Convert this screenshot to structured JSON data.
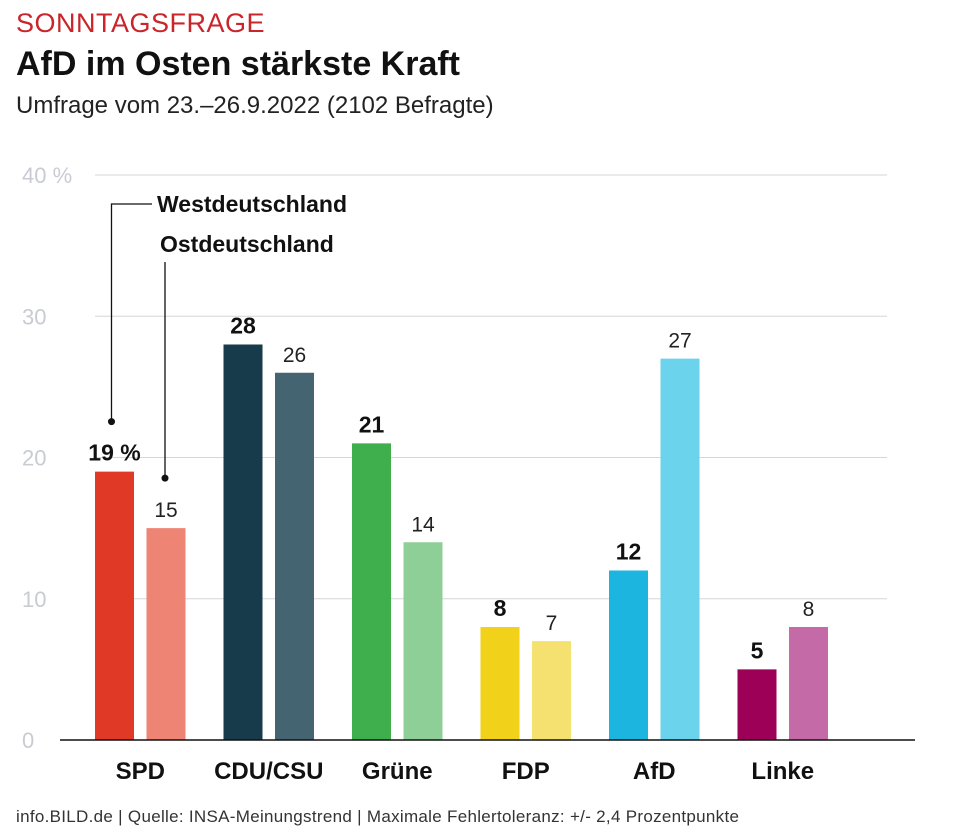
{
  "header": {
    "kicker": "SONNTAGSFRAGE",
    "title": "AfD im Osten stärkste Kraft",
    "subtitle": "Umfrage vom 23.–26.9.2022 (2102 Befragte)"
  },
  "footer": "info.BILD.de | Quelle: INSA-Meinungstrend | Maximale Fehlertoleranz: +/- 2,4 Prozentpunkte",
  "chart_data": {
    "type": "bar",
    "categories": [
      "SPD",
      "CDU/CSU",
      "Grüne",
      "FDP",
      "AfD",
      "Linke"
    ],
    "series": [
      {
        "name": "Westdeutschland",
        "values": [
          19,
          28,
          21,
          8,
          12,
          5
        ],
        "labels": [
          "19 %",
          "28",
          "21",
          "8",
          "12",
          "5"
        ],
        "colors": [
          "#e03a26",
          "#173b4a",
          "#3fae4d",
          "#f2d11a",
          "#1bb5e0",
          "#9c0057"
        ]
      },
      {
        "name": "Ostdeutschland",
        "values": [
          15,
          26,
          14,
          7,
          27,
          8
        ],
        "labels": [
          "15",
          "26",
          "14",
          "7",
          "27",
          "8"
        ],
        "colors": [
          "#ee8474",
          "#436470",
          "#8dcf96",
          "#f5e170",
          "#6bd3ec",
          "#c46aa6"
        ]
      }
    ],
    "ylim": [
      0,
      40
    ],
    "yticks": [
      0,
      10,
      20,
      30,
      40
    ],
    "ytick_labels": [
      "0",
      "10",
      "20",
      "30",
      "40 %"
    ],
    "grid": true,
    "legend_position": "top-left"
  }
}
